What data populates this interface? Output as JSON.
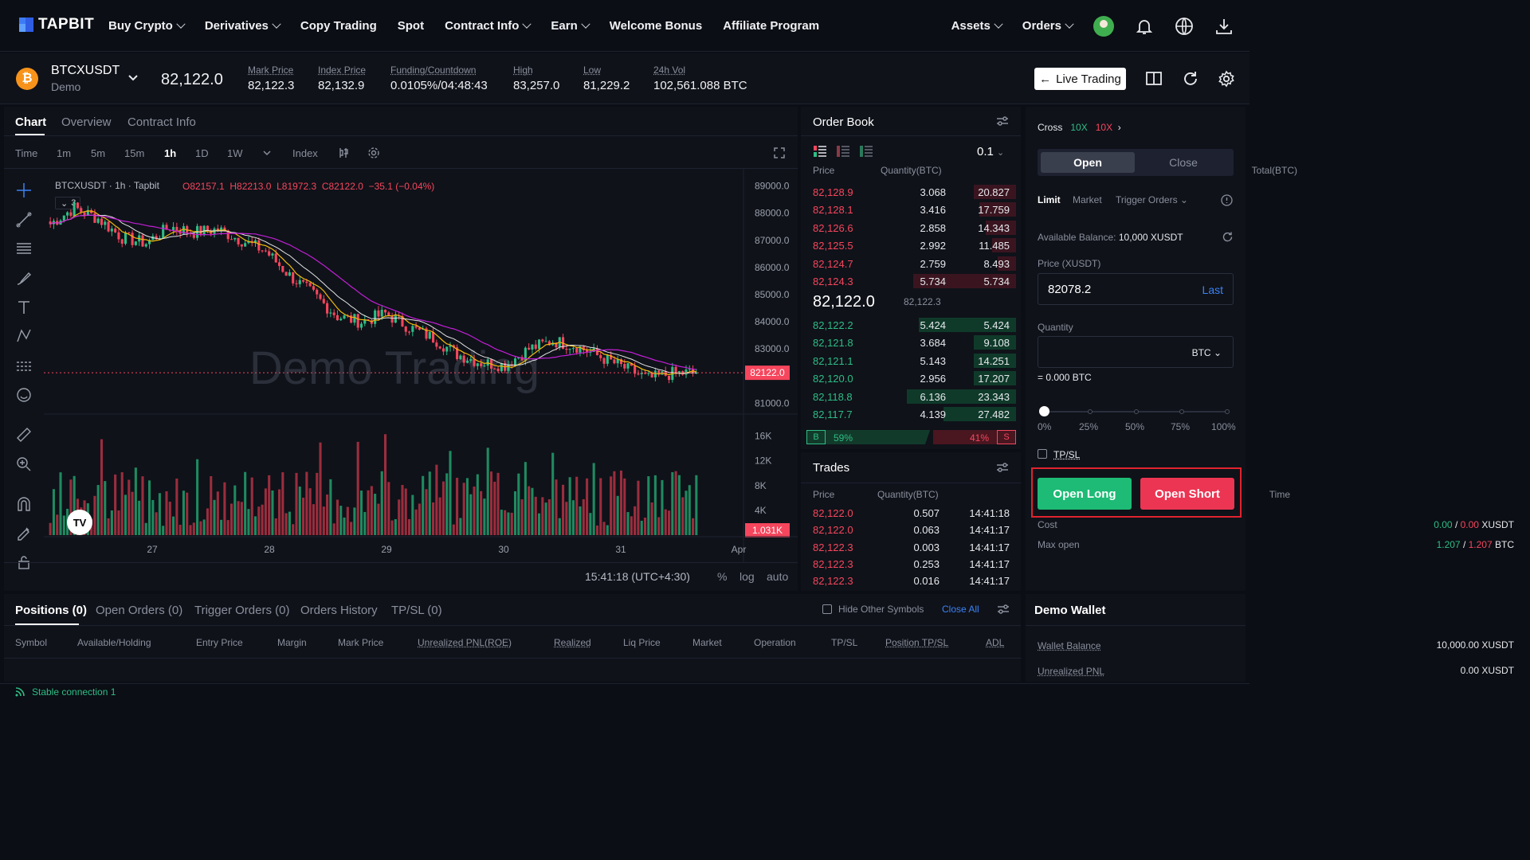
{
  "brand": {
    "name": "TAPBIT"
  },
  "nav": {
    "items": [
      {
        "label": "Buy Crypto",
        "dropdown": true
      },
      {
        "label": "Derivatives",
        "dropdown": true
      },
      {
        "label": "Copy Trading",
        "dropdown": false
      },
      {
        "label": "Spot",
        "dropdown": false
      },
      {
        "label": "Contract Info",
        "dropdown": true
      },
      {
        "label": "Earn",
        "dropdown": true
      },
      {
        "label": "Welcome Bonus",
        "dropdown": false
      },
      {
        "label": "Affiliate Program",
        "dropdown": false
      }
    ],
    "assets": "Assets",
    "orders": "Orders"
  },
  "ticker": {
    "symbol": "BTCXUSDT",
    "mode": "Demo",
    "last_price": "82,122.0",
    "stats": [
      {
        "label": "Mark Price",
        "value": "82,122.3"
      },
      {
        "label": "Index Price",
        "value": "82,132.9"
      },
      {
        "label": "Funding/Countdown",
        "value": "0.0105%/04:48:43"
      },
      {
        "label": "High",
        "value": "83,257.0"
      },
      {
        "label": "Low",
        "value": "81,229.2"
      },
      {
        "label": "24h Vol",
        "value": "102,561.088 BTC"
      }
    ],
    "live_trading": "Live Trading"
  },
  "chart": {
    "tabs": [
      "Chart",
      "Overview",
      "Contract Info"
    ],
    "intervals": [
      "Time",
      "1m",
      "5m",
      "15m",
      "1h",
      "1D",
      "1W"
    ],
    "active_interval": "1h",
    "index_label": "Index",
    "legend_symbol": "BTCXUSDT · 1h · Tapbit",
    "ohlc": {
      "o": "O82157.1",
      "h": "H82213.0",
      "l": "L81972.3",
      "c": "C82122.0",
      "chg": "−35.1 (−0.04%)"
    },
    "indicator_count": "3",
    "watermark": "Demo Trading",
    "price_axis": [
      "89000.0",
      "88000.0",
      "87000.0",
      "86000.0",
      "85000.0",
      "84000.0",
      "83000.0",
      "81000.0"
    ],
    "current_price_tag": "82122.0",
    "volume_axis": [
      "16K",
      "12K",
      "8K",
      "4K"
    ],
    "volume_tag": "1.031K",
    "date_axis": [
      "27",
      "28",
      "29",
      "30",
      "31",
      "Apr"
    ],
    "clock": "15:41:18 (UTC+4:30)",
    "opts": [
      "%",
      "log",
      "auto"
    ]
  },
  "chart_data": {
    "type": "candlestick",
    "title": "BTCXUSDT · 1h · Tapbit",
    "ylim": [
      80600,
      89400
    ],
    "x_labels": [
      "27",
      "28",
      "29",
      "30",
      "31",
      "Apr"
    ],
    "last_close": 82122.0,
    "close_trend_samples": [
      87600,
      88200,
      87800,
      87100,
      86900,
      87500,
      87300,
      87400,
      87000,
      86600,
      85700,
      85000,
      84200,
      84000,
      84300,
      83800,
      83400,
      82800,
      82500,
      82400,
      83000,
      83300,
      83100,
      82700,
      82300,
      81900,
      82100,
      82122
    ],
    "volume_ylim": [
      0,
      18000
    ],
    "last_volume": "1.031K"
  },
  "orderbook": {
    "title": "Order Book",
    "precision": "0.1",
    "headers": [
      "Price",
      "Quantity(BTC)",
      "Total(BTC)"
    ],
    "asks": [
      {
        "price": "82,128.9",
        "qty": "3.068",
        "total": "20.827",
        "depth": 0.28
      },
      {
        "price": "82,128.1",
        "qty": "3.416",
        "total": "17.759",
        "depth": 0.24
      },
      {
        "price": "82,126.6",
        "qty": "2.858",
        "total": "14.343",
        "depth": 0.2
      },
      {
        "price": "82,125.5",
        "qty": "2.992",
        "total": "11.485",
        "depth": 0.16
      },
      {
        "price": "82,124.7",
        "qty": "2.759",
        "total": "8.493",
        "depth": 0.12
      },
      {
        "price": "82,124.3",
        "qty": "5.734",
        "total": "5.734",
        "depth": 0.68
      }
    ],
    "mid_price": "82,122.0",
    "mid_mark": "82,122.3",
    "bids": [
      {
        "price": "82,122.2",
        "qty": "5.424",
        "total": "5.424",
        "depth": 0.64
      },
      {
        "price": "82,121.8",
        "qty": "3.684",
        "total": "9.108",
        "depth": 0.28
      },
      {
        "price": "82,121.1",
        "qty": "5.143",
        "total": "14.251",
        "depth": 0.28
      },
      {
        "price": "82,120.0",
        "qty": "2.956",
        "total": "17.207",
        "depth": 0.28
      },
      {
        "price": "82,118.8",
        "qty": "6.136",
        "total": "23.343",
        "depth": 0.72
      },
      {
        "price": "82,117.7",
        "qty": "4.139",
        "total": "27.482",
        "depth": 0.48
      }
    ],
    "buy_label": "B",
    "buy_pct": "59%",
    "sell_pct": "41%",
    "sell_label": "S",
    "buy_ratio": 0.59
  },
  "trades": {
    "title": "Trades",
    "headers": [
      "Price",
      "Quantity(BTC)",
      "Time"
    ],
    "rows": [
      {
        "price": "82,122.0",
        "qty": "0.507",
        "time": "14:41:18"
      },
      {
        "price": "82,122.0",
        "qty": "0.063",
        "time": "14:41:17"
      },
      {
        "price": "82,122.3",
        "qty": "0.003",
        "time": "14:41:17"
      },
      {
        "price": "82,122.3",
        "qty": "0.253",
        "time": "14:41:17"
      },
      {
        "price": "82,122.3",
        "qty": "0.016",
        "time": "14:41:17"
      }
    ]
  },
  "order_form": {
    "margin_mode": "Cross",
    "lev_long": "10X",
    "lev_short": "10X",
    "open_tab": "Open",
    "close_tab": "Close",
    "type_tabs": [
      "Limit",
      "Market",
      "Trigger Orders"
    ],
    "avail_label": "Available Balance:",
    "avail_value": "10,000 XUSDT",
    "price_label": "Price (XUSDT)",
    "price_value": "82078.2",
    "price_last": "Last",
    "qty_label": "Quantity",
    "qty_unit": "BTC",
    "qty_equiv": "= 0.000 BTC",
    "slider_marks": [
      "0%",
      "25%",
      "50%",
      "75%",
      "100%"
    ],
    "slider_value": 0,
    "tpsl_label": "TP/SL",
    "open_long": "Open Long",
    "open_short": "Open Short",
    "cost_label": "Cost",
    "cost_long": "0.00",
    "cost_short": "0.00",
    "cost_unit": "XUSDT",
    "maxopen_label": "Max open",
    "max_long": "1.207",
    "max_short": "1.207",
    "max_unit": "BTC"
  },
  "positions": {
    "tabs": [
      "Positions (0)",
      "Open Orders (0)",
      "Trigger Orders (0)",
      "Orders History",
      "TP/SL (0)"
    ],
    "hide_other": "Hide Other Symbols",
    "close_all": "Close All",
    "columns": [
      "Symbol",
      "Available/Holding",
      "Entry Price",
      "Margin",
      "Mark Price",
      "Unrealized PNL(ROE)",
      "Realized",
      "Liq Price",
      "Market",
      "Operation",
      "TP/SL",
      "Position TP/SL",
      "ADL"
    ]
  },
  "wallet": {
    "title": "Demo Wallet",
    "rows": [
      {
        "label": "Wallet Balance",
        "value": "10,000.00 XUSDT"
      },
      {
        "label": "Unrealized PNL",
        "value": "0.00 XUSDT"
      }
    ]
  },
  "status": {
    "connection": "Stable connection 1"
  },
  "colors": {
    "up": "#2ebd85",
    "down": "#f6465d",
    "accent": "#3b82f6",
    "long_btn": "#1dbb75",
    "short_btn": "#ec3553"
  }
}
